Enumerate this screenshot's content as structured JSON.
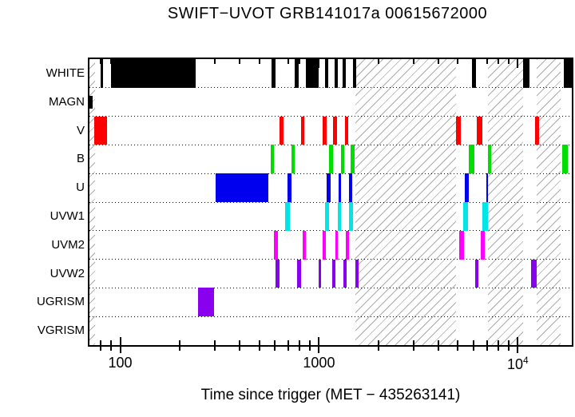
{
  "chart_data": {
    "type": "bar",
    "variant": "horizontal-interval-timeline",
    "title": "SWIFT−UVOT GRB141017a 00615672000",
    "xlabel": "Time since trigger (MET − 435263141)",
    "xscale": "log",
    "xlim": [
      70,
      18700
    ],
    "grid": "dotted horizontal row separators",
    "legend": "none",
    "categories": [
      "WHITE",
      "MAGN",
      "V",
      "B",
      "U",
      "UVW1",
      "UVM2",
      "UVW2",
      "UGRISM",
      "VGRISM"
    ],
    "x_major_ticks": [
      {
        "value": 100,
        "label": "100"
      },
      {
        "value": 1000,
        "label": "1000"
      },
      {
        "value": 10000,
        "label": "10^4"
      }
    ],
    "x_minor_ticks": [
      80,
      90,
      200,
      300,
      400,
      500,
      600,
      700,
      800,
      900,
      2000,
      3000,
      4000,
      5000,
      6000,
      7000,
      8000,
      9000
    ],
    "series": [
      {
        "name": "WHITE",
        "color": "#000000",
        "intervals": [
          [
            80,
            82
          ],
          [
            90,
            240
          ],
          [
            575,
            605
          ],
          [
            758,
            794
          ],
          [
            855,
            1000
          ],
          [
            1076,
            1117
          ],
          [
            1200,
            1240
          ],
          [
            1318,
            1360
          ],
          [
            1486,
            1534
          ],
          [
            5860,
            6190
          ],
          [
            10670,
            11460
          ],
          [
            17060,
            18700
          ]
        ]
      },
      {
        "name": "MAGN",
        "color": "#000000",
        "partial_height": true,
        "intervals": [
          [
            70,
            72.5
          ]
        ]
      },
      {
        "name": "V",
        "color": "#ff0000",
        "intervals": [
          [
            74,
            86
          ],
          [
            631,
            661
          ],
          [
            809,
            847
          ],
          [
            1047,
            1096
          ],
          [
            1180,
            1236
          ],
          [
            1355,
            1406
          ],
          [
            4875,
            5150
          ],
          [
            6194,
            6610
          ],
          [
            12250,
            12820
          ]
        ]
      },
      {
        "name": "B",
        "color": "#00dd00",
        "intervals": [
          [
            570,
            591
          ],
          [
            724,
            752
          ],
          [
            1127,
            1180
          ],
          [
            1294,
            1343
          ],
          [
            1445,
            1514
          ],
          [
            5650,
            6030
          ],
          [
            7050,
            7380
          ],
          [
            16750,
            17870
          ]
        ]
      },
      {
        "name": "U",
        "color": "#0000ee",
        "intervals": [
          [
            302,
            555
          ],
          [
            692,
            724
          ],
          [
            1096,
            1148
          ],
          [
            1259,
            1294
          ],
          [
            1419,
            1472
          ],
          [
            5395,
            5650
          ],
          [
            6920,
            7110
          ]
        ]
      },
      {
        "name": "UVW1",
        "color": "#00e6e6",
        "intervals": [
          [
            673,
            711
          ],
          [
            1076,
            1127
          ],
          [
            1247,
            1294
          ],
          [
            1419,
            1486
          ],
          [
            5300,
            5600
          ],
          [
            6610,
            7050
          ]
        ]
      },
      {
        "name": "UVM2",
        "color": "#ff00ff",
        "intervals": [
          [
            591,
            619
          ],
          [
            824,
            855
          ],
          [
            1047,
            1086
          ],
          [
            1213,
            1247
          ],
          [
            1368,
            1419
          ],
          [
            5070,
            5360
          ],
          [
            6500,
            6810
          ]
        ]
      },
      {
        "name": "UVW2",
        "color": "#8800ee",
        "intervals": [
          [
            603,
            631
          ],
          [
            773,
            809
          ],
          [
            1000,
            1028
          ],
          [
            1169,
            1213
          ],
          [
            1330,
            1380
          ],
          [
            1528,
            1585
          ],
          [
            6080,
            6310
          ],
          [
            11700,
            12470
          ]
        ]
      },
      {
        "name": "UGRISM",
        "color": "#8800ee",
        "intervals": [
          [
            246,
            296
          ]
        ]
      },
      {
        "name": "VGRISM",
        "color": "#8800ee",
        "intervals": []
      }
    ],
    "hatch_bands": [
      [
        70,
        74.5
      ],
      [
        1528,
        4875
      ],
      [
        7050,
        10670
      ],
      [
        12470,
        16440
      ]
    ],
    "hatch_color": "#ababab",
    "frame_color": "#000000",
    "background": "#ffffff"
  }
}
